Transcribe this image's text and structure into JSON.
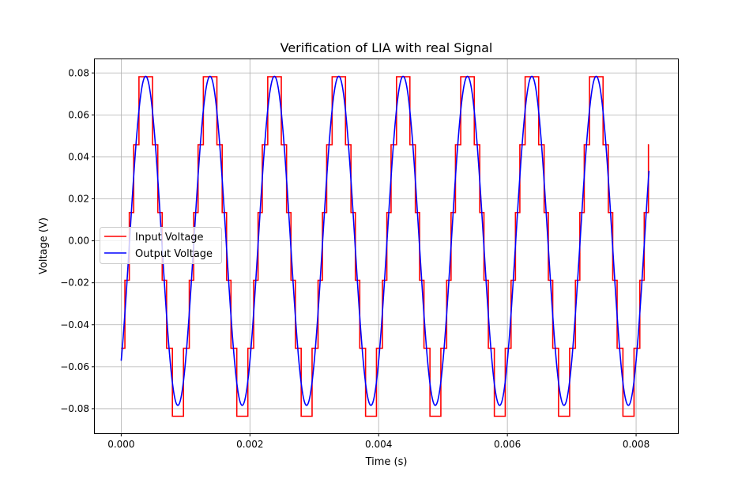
{
  "chart_data": {
    "type": "line",
    "title": "Verification of LIA with real Signal",
    "xlabel": "Time (s)",
    "ylabel": "Voltage (V)",
    "xlim": [
      -0.00041,
      0.00865
    ],
    "ylim": [
      -0.0917,
      0.0865
    ],
    "xticks": [
      0.0,
      0.002,
      0.004,
      0.006,
      0.008
    ],
    "xtick_labels": [
      "0.000",
      "0.002",
      "0.004",
      "0.006",
      "0.008"
    ],
    "yticks": [
      -0.08,
      -0.06,
      -0.04,
      -0.02,
      0.0,
      0.02,
      0.04,
      0.06,
      0.08
    ],
    "ytick_labels": [
      "−0.08",
      "−0.06",
      "−0.04",
      "−0.02",
      "0.00",
      "0.02",
      "0.04",
      "0.06",
      "0.08"
    ],
    "grid": true,
    "legend_position": "center-left",
    "series": [
      {
        "name": "Input Voltage",
        "color": "#ff0000",
        "style": "step",
        "amplitude": 0.0784,
        "frequency_hz": 1000,
        "phase_rad": -0.817,
        "levels": [
          -0.0836,
          -0.0512,
          -0.0188,
          0.0135,
          0.0458,
          0.0782
        ],
        "x_start": 0.0,
        "x_end": 0.0082,
        "end_value": 0.0458
      },
      {
        "name": "Output Voltage",
        "color": "#0000ff",
        "style": "smooth",
        "amplitude": 0.0784,
        "frequency_hz": 1000,
        "phase_rad": -0.817,
        "x_start": 0.0,
        "x_end": 0.0082
      }
    ]
  }
}
